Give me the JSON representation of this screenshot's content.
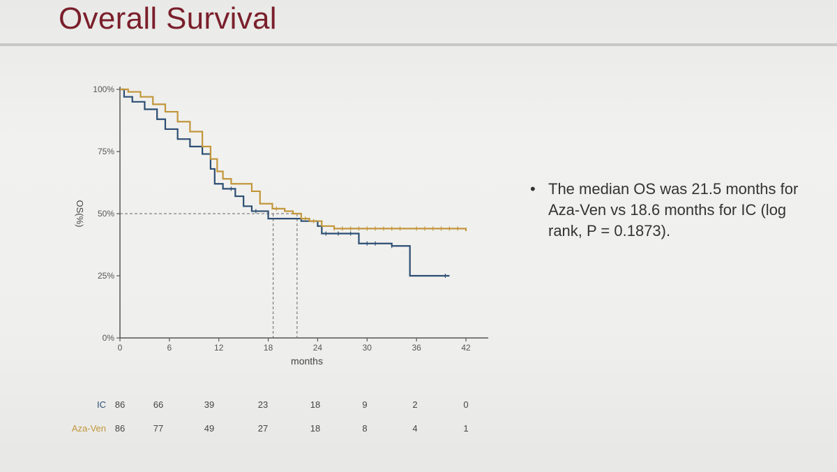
{
  "slide": {
    "title": "Overall Survival",
    "bullet": "The median OS was 21.5 months for Aza-Ven vs 18.6 months for IC (log rank, P = 0.1873)."
  },
  "colors": {
    "title": "#7a1f2b",
    "ic": "#2c4e73",
    "aza_ven": "#c2963b",
    "axis": "#555555"
  },
  "chart_data": {
    "type": "line",
    "ylabel": "OS(%)",
    "xlabel": "months",
    "xlim": [
      0,
      42
    ],
    "ylim": [
      0,
      100
    ],
    "x_ticks": [
      0,
      6,
      12,
      18,
      24,
      30,
      36,
      42
    ],
    "x_tick_labels": [
      "0",
      "6",
      "12",
      "18",
      "24",
      "30",
      "36",
      "42"
    ],
    "y_ticks": [
      0,
      25,
      50,
      75,
      100
    ],
    "y_tick_labels": [
      "0%",
      "25%",
      "50%",
      "75%",
      "100%"
    ],
    "median_reference": {
      "y": 50,
      "x_ic": 18.6,
      "x_aza_ven": 21.5
    },
    "series": [
      {
        "name": "IC",
        "color_key": "ic",
        "steps": [
          [
            0,
            100
          ],
          [
            0.5,
            97
          ],
          [
            1.5,
            95
          ],
          [
            3,
            92
          ],
          [
            4.5,
            88
          ],
          [
            5.5,
            84
          ],
          [
            7,
            80
          ],
          [
            8.5,
            77
          ],
          [
            10,
            74
          ],
          [
            11,
            68
          ],
          [
            11.5,
            62
          ],
          [
            12.5,
            60
          ],
          [
            14,
            57
          ],
          [
            15,
            53
          ],
          [
            16,
            51
          ],
          [
            17,
            51
          ],
          [
            18,
            48
          ],
          [
            19,
            48
          ],
          [
            21,
            48
          ],
          [
            22,
            47
          ],
          [
            24,
            45
          ],
          [
            24.5,
            42
          ],
          [
            26,
            42
          ],
          [
            29,
            38
          ],
          [
            33,
            37
          ],
          [
            35,
            37
          ],
          [
            35.2,
            25
          ],
          [
            40,
            25
          ]
        ],
        "censor_x": [
          13.5,
          16.5,
          25,
          26.5,
          28,
          30,
          31,
          33,
          39.5
        ]
      },
      {
        "name": "Aza-Ven",
        "color_key": "aza_ven",
        "steps": [
          [
            0,
            100
          ],
          [
            1,
            99
          ],
          [
            2.5,
            97
          ],
          [
            4,
            94
          ],
          [
            5.5,
            91
          ],
          [
            7,
            87
          ],
          [
            8.5,
            83
          ],
          [
            10,
            77
          ],
          [
            11,
            72
          ],
          [
            11.8,
            67
          ],
          [
            12.5,
            64
          ],
          [
            13.5,
            62
          ],
          [
            16,
            59
          ],
          [
            17,
            54
          ],
          [
            18.5,
            52
          ],
          [
            20,
            51
          ],
          [
            21,
            50
          ],
          [
            22,
            48
          ],
          [
            23,
            47
          ],
          [
            24.5,
            45
          ],
          [
            26,
            44
          ],
          [
            42,
            43
          ]
        ],
        "censor_x": [
          19,
          22.5,
          23.5,
          26,
          27,
          28,
          29,
          30,
          31,
          32,
          33,
          34,
          36,
          37,
          38,
          39,
          40,
          41
        ]
      }
    ],
    "number_at_risk": {
      "times": [
        0,
        6,
        12,
        18,
        24,
        30,
        36,
        42
      ],
      "rows": [
        {
          "label": "IC",
          "values": [
            86,
            66,
            39,
            23,
            18,
            9,
            2,
            0
          ]
        },
        {
          "label": "Aza-Ven",
          "values": [
            86,
            77,
            49,
            27,
            18,
            8,
            4,
            1
          ]
        }
      ]
    }
  }
}
